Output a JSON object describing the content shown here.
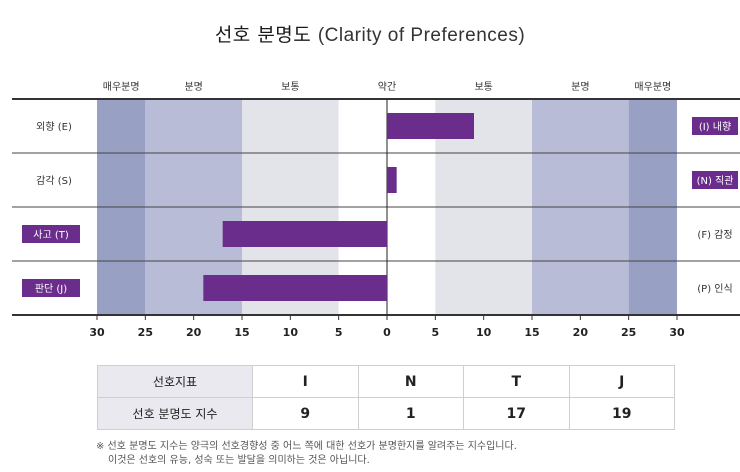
{
  "title": {
    "ko": "선호 분명도",
    "en": "(Clarity of Preferences)"
  },
  "band_labels": [
    "매우분명",
    "분명",
    "보통",
    "약간",
    "보통",
    "분명",
    "매우분명"
  ],
  "colors": {
    "bar": "#6b2d8c",
    "very_clear": "#98a0c4",
    "clear": "#b8bcd6",
    "moderate": "#e3e3ea",
    "slight": "#ffffff"
  },
  "chart_data": {
    "type": "bar",
    "orientation": "horizontal-diverging",
    "title": "선호 분명도 (Clarity of Preferences)",
    "xlim": [
      -30,
      30
    ],
    "xticks": [
      30,
      25,
      20,
      15,
      10,
      5,
      0,
      5,
      10,
      15,
      20,
      25,
      30
    ],
    "rows": [
      {
        "left_label": "외향 (E)",
        "right_label": "(I) 내향",
        "side": "right",
        "value": 9,
        "highlight": "right"
      },
      {
        "left_label": "감각 (S)",
        "right_label": "(N) 직관",
        "side": "right",
        "value": 1,
        "highlight": "right"
      },
      {
        "left_label": "사고 (T)",
        "right_label": "(F) 감정",
        "side": "left",
        "value": 17,
        "highlight": "left"
      },
      {
        "left_label": "판단 (J)",
        "right_label": "(P) 인식",
        "side": "left",
        "value": 19,
        "highlight": "left"
      }
    ]
  },
  "table": {
    "row1_label": "선호지표",
    "row2_label": "선호 분명도 지수",
    "indicators": [
      "I",
      "N",
      "T",
      "J"
    ],
    "scores": [
      "9",
      "1",
      "17",
      "19"
    ]
  },
  "footnote": [
    "※ 선호 분명도 지수는 양극의 선호경향성 중 어느 쪽에 대한 선호가 분명한지를 알려주는 지수입니다.",
    "이것은 선호의 유능, 성숙 또는 발달을 의미하는 것은 아닙니다."
  ]
}
